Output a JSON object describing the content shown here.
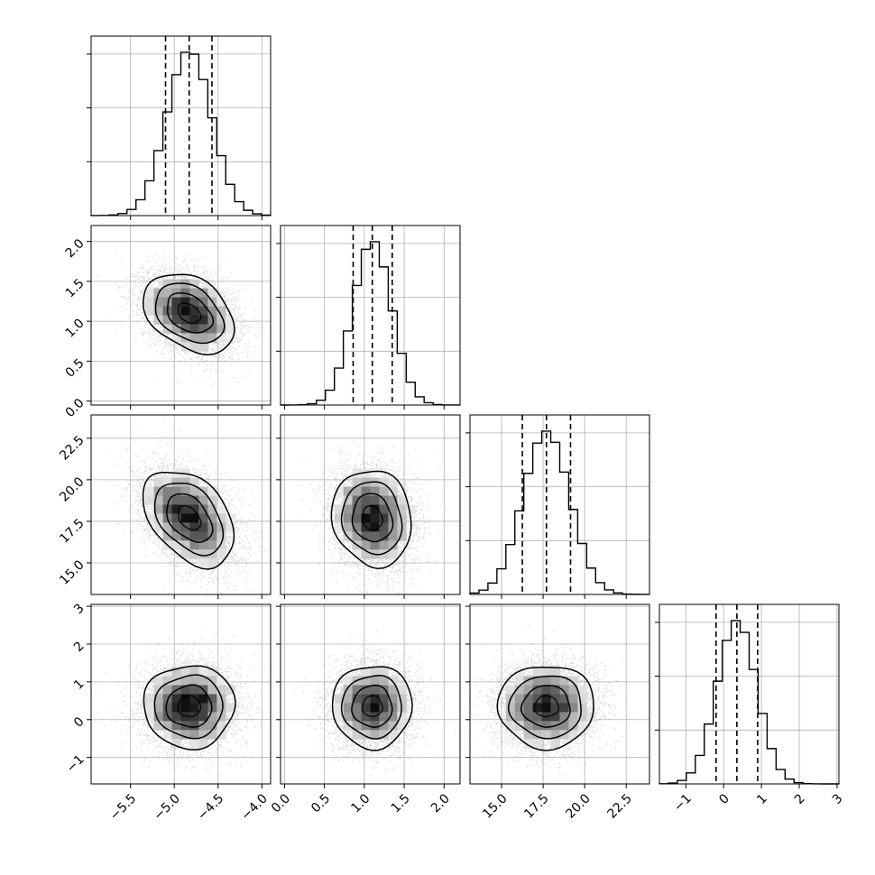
{
  "chart_data": {
    "type": "corner",
    "colors": {
      "line": "#000000",
      "grid": "#b0b0b0",
      "scatter": "#999999",
      "background": "#ffffff"
    },
    "grid": true,
    "parameters": [
      {
        "range": [
          -5.95,
          -3.9
        ],
        "ticks": [
          -5.5,
          -5.0,
          -4.5,
          -4.0
        ],
        "tick_labels": [
          "−5.5",
          "−5.0",
          "−4.5",
          "−4.0"
        ],
        "mean": -4.83,
        "sd": 0.26,
        "hist_sd": 0.255,
        "quantiles": [
          -5.1,
          -4.83,
          -4.57
        ]
      },
      {
        "range": [
          -0.05,
          2.2
        ],
        "ticks": [
          0.0,
          0.5,
          1.0,
          1.5,
          2.0
        ],
        "tick_labels": [
          "0.0",
          "0.5",
          "1.0",
          "1.5",
          "2.0"
        ],
        "mean": 1.1,
        "sd": 0.25,
        "hist_sd": 0.24,
        "quantiles": [
          0.86,
          1.1,
          1.35
        ]
      },
      {
        "range": [
          13.1,
          23.9
        ],
        "ticks": [
          15.0,
          17.5,
          20.0,
          22.5
        ],
        "tick_labels": [
          "15.0",
          "17.5",
          "20.0",
          "22.5"
        ],
        "mean": 17.7,
        "sd": 1.45,
        "hist_sd": 1.4,
        "quantiles": [
          16.25,
          17.7,
          19.15
        ]
      },
      {
        "range": [
          -1.7,
          3.05
        ],
        "ticks": [
          -1,
          0,
          1,
          2,
          3
        ],
        "tick_labels": [
          "−1",
          "0",
          "1",
          "2",
          "3"
        ],
        "mean": 0.35,
        "sd": 0.55,
        "hist_sd": 0.52,
        "quantiles": [
          -0.2,
          0.35,
          0.9
        ]
      }
    ],
    "correlations": [
      [
        1.0,
        -0.35,
        -0.4,
        0.0
      ],
      [
        -0.35,
        1.0,
        -0.1,
        0.0
      ],
      [
        -0.4,
        -0.1,
        1.0,
        0.0
      ],
      [
        0.0,
        0.0,
        0.0,
        1.0
      ]
    ],
    "hist_bins": 20,
    "contour_levels": [
      0.5,
      1.0,
      1.5,
      2.0
    ]
  }
}
